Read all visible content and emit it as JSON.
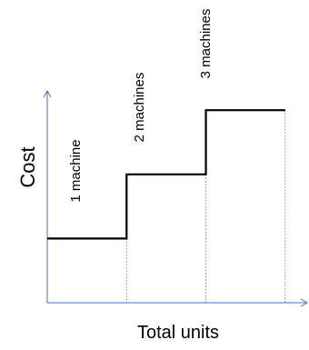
{
  "chart_data": {
    "type": "line",
    "title": "",
    "xlabel": "Total units",
    "ylabel": "Cost",
    "xlim": [
      0,
      3.3
    ],
    "ylim": [
      0,
      3.3
    ],
    "grid": false,
    "axes_color": "#4472C4",
    "guide_color": "#4472C4",
    "line_color": "#000000",
    "tick_labels_shown": false,
    "steps": [
      {
        "label": "1 machine",
        "x_start": 0,
        "x_end": 1,
        "y": 1
      },
      {
        "label": "2 machines",
        "x_start": 1,
        "x_end": 2,
        "y": 2
      },
      {
        "label": "3 machines",
        "x_start": 2,
        "x_end": 3,
        "y": 3
      }
    ]
  }
}
